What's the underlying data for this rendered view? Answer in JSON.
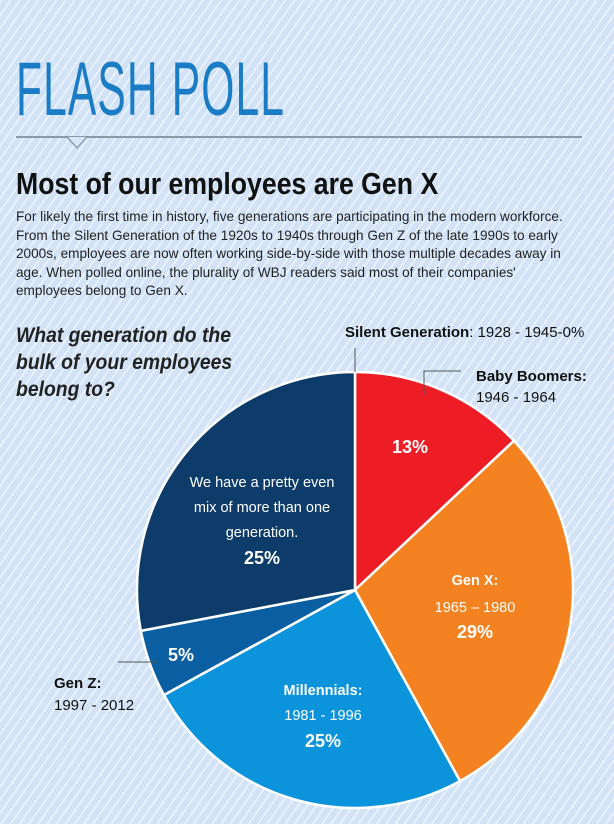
{
  "header": {
    "kicker": "FLASH POLL",
    "headline": "Most of our employees are Gen X",
    "intro": "For likely the first time in history, five generations are participating in the modern workforce. From the Silent Generation of the 1920s to 1940s through Gen Z of the late 1990s to early 2000s, employees are now often working side-by-side with those multiple decades away in age. When polled online, the plurality of WBJ readers said most of their companies' employees belong to Gen X."
  },
  "chart_data": {
    "type": "pie",
    "title": "What generation do the bulk of your employees belong to?",
    "slices": [
      {
        "name": "Silent Generation",
        "years": "1928 - 1945",
        "value": 0,
        "pct_label": "0%",
        "color": "#1a7cc4"
      },
      {
        "name": "Baby Boomers",
        "years": "1946 - 1964",
        "value": 13,
        "pct_label": "13%",
        "color": "#ee1c25"
      },
      {
        "name": "Gen X",
        "years": "1965 – 1980",
        "value": 29,
        "pct_label": "29%",
        "color": "#f58220"
      },
      {
        "name": "Millennials",
        "years": "1981 - 1996",
        "value": 25,
        "pct_label": "25%",
        "color": "#0b93dc"
      },
      {
        "name": "Gen Z",
        "years": "1997 - 2012",
        "value": 5,
        "pct_label": "5%",
        "color": "#0a5fa3"
      },
      {
        "name": "We have a pretty even mix of more than one generation.",
        "lines": [
          "We have a pretty even",
          "mix of more than one",
          "generation."
        ],
        "value": 25,
        "pct_label": "25%",
        "color": "#0d3c6a"
      }
    ]
  },
  "labels": {
    "silent_name": "Silent Generation",
    "silent_rest": ": 1928 - 1945-0%",
    "boomers_name": "Baby Boomers:",
    "genx_name": "Gen X:",
    "millennials_name": "Millennials:",
    "genz_name": "Gen Z:"
  }
}
